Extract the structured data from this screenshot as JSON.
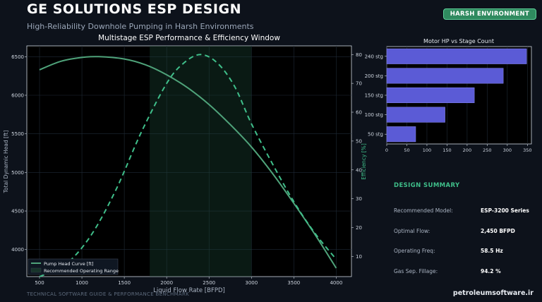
{
  "header": {
    "title": "GE SOLUTIONS ESP DESIGN",
    "subtitle": "High-Reliability Downhole Pumping in Harsh Environments",
    "badge": "HARSH ENVIRONMENT"
  },
  "summary": {
    "title": "DESIGN SUMMARY",
    "rows": [
      {
        "label": "Recommended Model:",
        "value": "ESP-3200 Series"
      },
      {
        "label": "Optimal Flow:",
        "value": "2,450 BFPD"
      },
      {
        "label": "Operating Freq:",
        "value": "58.5 Hz"
      },
      {
        "label": "Gas Sep. Fillage:",
        "value": "94.2 %"
      }
    ]
  },
  "footer": {
    "left": "TECHNICAL SOFTWARE GUIDE & PERFORMANCE BENCHMARK",
    "right": "petroleumsoftware.ir"
  },
  "colors": {
    "background": "#0d121b",
    "accent": "#3fbf8a",
    "head_curve": "#4fa37a",
    "efficiency_curve": "#3fbf8a",
    "bars": "#5b5bd6"
  },
  "chart_data": [
    {
      "type": "line",
      "title": "Multistage ESP Performance & Efficiency Window",
      "xlabel": "Liquid Flow Rate [BFPD]",
      "ylabel": "Total Dynamic Head [ft]",
      "y2label": "Efficiency [%]",
      "xlim": [
        350,
        4180
      ],
      "ylim": [
        3650,
        6640
      ],
      "y2lim": [
        3,
        83
      ],
      "xticks": [
        500,
        1000,
        1500,
        2000,
        2500,
        3000,
        3500,
        4000
      ],
      "yticks": [
        4000,
        4500,
        5000,
        5500,
        6000,
        6500
      ],
      "y2ticks": [
        10,
        20,
        30,
        40,
        50,
        60,
        70,
        80
      ],
      "grid": true,
      "legend_position": "bottom-left",
      "shaded_region": {
        "name": "Recommended Operating Range",
        "x": [
          1800,
          3000
        ]
      },
      "series": [
        {
          "name": "Pump Head Curve [ft]",
          "axis": "left",
          "style": "solid",
          "x": [
            500,
            750,
            1000,
            1200,
            1500,
            1750,
            2000,
            2250,
            2500,
            2750,
            3000,
            3250,
            3500,
            3750,
            4000
          ],
          "y": [
            6330,
            6440,
            6490,
            6500,
            6470,
            6395,
            6265,
            6095,
            5880,
            5620,
            5330,
            4985,
            4600,
            4195,
            3760
          ]
        },
        {
          "name": "Efficiency [%]",
          "axis": "right",
          "style": "dashed",
          "x": [
            500,
            800,
            1100,
            1400,
            1700,
            2000,
            2200,
            2400,
            2600,
            2800,
            3000,
            3250,
            3500,
            3750,
            4000
          ],
          "y": [
            3,
            7,
            17,
            33,
            53,
            70,
            77,
            80,
            77,
            69,
            56,
            42,
            29,
            18,
            9
          ]
        }
      ]
    },
    {
      "type": "bar",
      "orientation": "horizontal",
      "title": "Motor HP vs Stage Count",
      "categories": [
        "50 stg",
        "100 stg",
        "150 stg",
        "200 stg",
        "240 stg"
      ],
      "values": [
        72,
        145,
        218,
        290,
        348
      ],
      "xlim": [
        0,
        360
      ],
      "xticks": [
        0,
        50,
        100,
        150,
        200,
        250,
        300,
        350
      ],
      "grid": true
    }
  ]
}
